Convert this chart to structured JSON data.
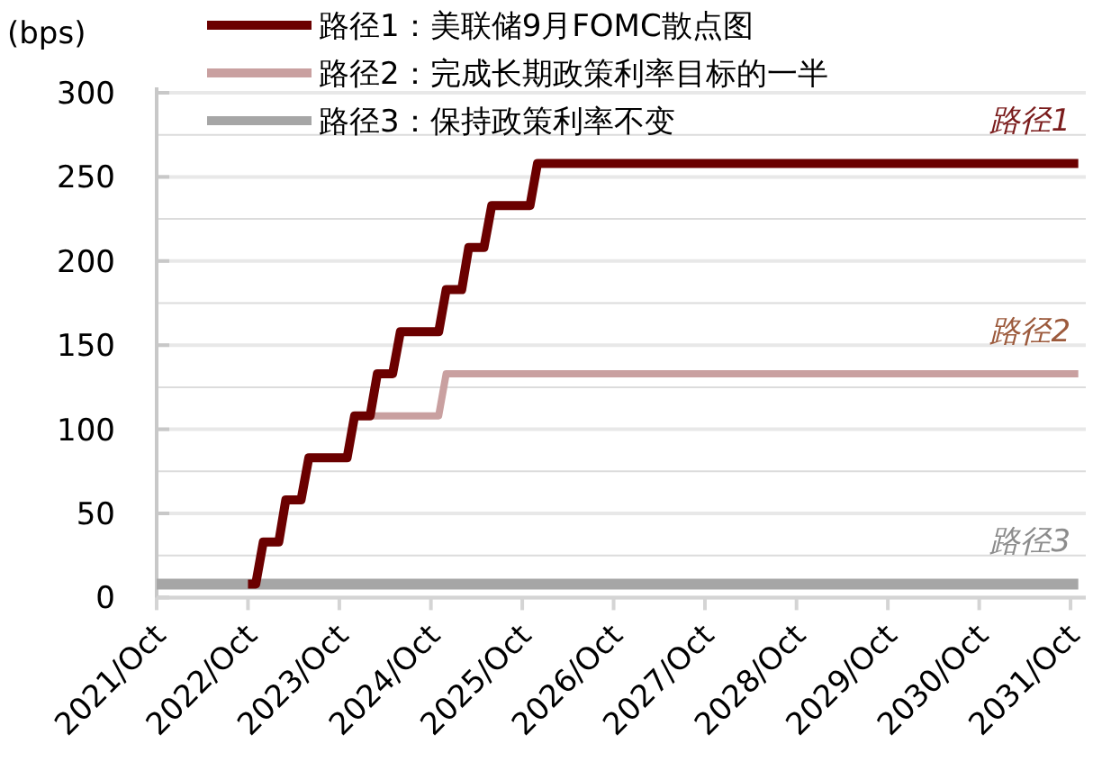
{
  "chart_data": {
    "type": "line",
    "ylabel": "(bps)",
    "xlim": [
      "2021-10",
      "2031-12"
    ],
    "xticks": [
      {
        "value": "2021-10",
        "label": "2021/Oct"
      },
      {
        "value": "2022-10",
        "label": "2022/Oct"
      },
      {
        "value": "2023-10",
        "label": "2023/Oct"
      },
      {
        "value": "2024-10",
        "label": "2024/Oct"
      },
      {
        "value": "2025-10",
        "label": "2025/Oct"
      },
      {
        "value": "2026-10",
        "label": "2026/Oct"
      },
      {
        "value": "2027-10",
        "label": "2027/Oct"
      },
      {
        "value": "2028-10",
        "label": "2028/Oct"
      },
      {
        "value": "2029-10",
        "label": "2029/Oct"
      },
      {
        "value": "2030-10",
        "label": "2030/Oct"
      },
      {
        "value": "2031-10",
        "label": "2031/Oct"
      }
    ],
    "ylim": [
      0,
      300
    ],
    "yticks": [
      0,
      {
        "value": 25,
        "label": null
      },
      50,
      {
        "value": 75,
        "label": null
      },
      100,
      {
        "value": 125,
        "label": null
      },
      150,
      {
        "value": 175,
        "label": null
      },
      200,
      {
        "value": 225,
        "label": null
      },
      250,
      {
        "value": 275,
        "label": null
      },
      300
    ],
    "grid": "y",
    "legend": "top",
    "marker": "none",
    "line_style": "solid",
    "series": [
      {
        "name": "路径1：美联储9月FOMC散点图",
        "color": "#6b0000",
        "x": [
          "2022-10",
          "2022-11",
          "2022-12",
          "2023-02",
          "2023-03",
          "2023-05",
          "2023-06",
          "2023-11",
          "2023-12",
          "2024-02",
          "2024-03",
          "2024-05",
          "2024-06",
          "2024-11",
          "2024-12",
          "2025-02",
          "2025-03",
          "2025-05",
          "2025-06",
          "2025-11",
          "2025-12",
          "2031-11"
        ],
        "values": [
          8,
          8,
          33,
          33,
          58,
          58,
          83,
          83,
          108,
          108,
          133,
          133,
          158,
          158,
          183,
          183,
          208,
          208,
          233,
          233,
          258,
          258
        ]
      },
      {
        "name": "路径2：完成长期政策利率目标的一半",
        "color": "#c9a0a0",
        "x": [
          "2023-12",
          "2024-11",
          "2024-12",
          "2031-11"
        ],
        "values": [
          108,
          108,
          133,
          133
        ]
      },
      {
        "name": "路径3：保持政策利率不变",
        "color": "#a6a6a6",
        "x": [
          "2021-10",
          "2031-11"
        ],
        "values": [
          8,
          8
        ]
      }
    ],
    "annotations": [
      "路径1",
      "路径2",
      "路径3"
    ]
  }
}
